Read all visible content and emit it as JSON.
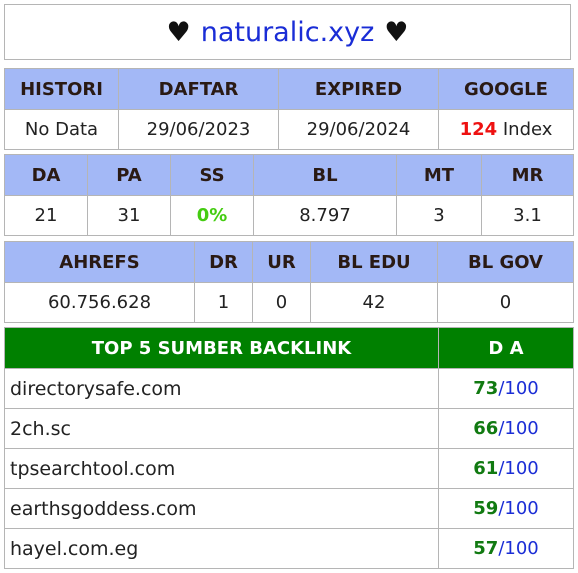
{
  "title": {
    "heart_left": "♥",
    "domain": "naturalic.xyz",
    "heart_right": "♥"
  },
  "table1": {
    "headers": [
      "HISTORI",
      "DAFTAR",
      "EXPIRED",
      "GOOGLE"
    ],
    "histori": "No Data",
    "daftar": "29/06/2023",
    "expired": "29/06/2024",
    "google_count": "124",
    "google_suffix": " Index"
  },
  "table2": {
    "headers": [
      "DA",
      "PA",
      "SS",
      "BL",
      "MT",
      "MR"
    ],
    "values": [
      "21",
      "31",
      "0%",
      "8.797",
      "3",
      "3.1"
    ]
  },
  "table3": {
    "headers": [
      "AHREFS",
      "DR",
      "UR",
      "BL EDU",
      "BL GOV"
    ],
    "values": [
      "60.756.628",
      "1",
      "0",
      "42",
      "0"
    ]
  },
  "backlinks": {
    "header_source": "TOP 5 SUMBER BACKLINK",
    "header_da": "D A",
    "rows": [
      {
        "domain": "directorysafe.com",
        "da": "73",
        "max": "/100"
      },
      {
        "domain": "2ch.sc",
        "da": "66",
        "max": "/100"
      },
      {
        "domain": "tpsearchtool.com",
        "da": "61",
        "max": "/100"
      },
      {
        "domain": "earthsgoddess.com",
        "da": "59",
        "max": "/100"
      },
      {
        "domain": "hayel.com.eg",
        "da": "57",
        "max": "/100"
      }
    ]
  },
  "colors": {
    "header_bg": "#a3b8f6",
    "backlink_header_bg": "#008000",
    "domain_blue": "#1a2dd6",
    "da_green": "#117a11",
    "ss_green": "#44cc11",
    "google_red": "#ee1111"
  }
}
